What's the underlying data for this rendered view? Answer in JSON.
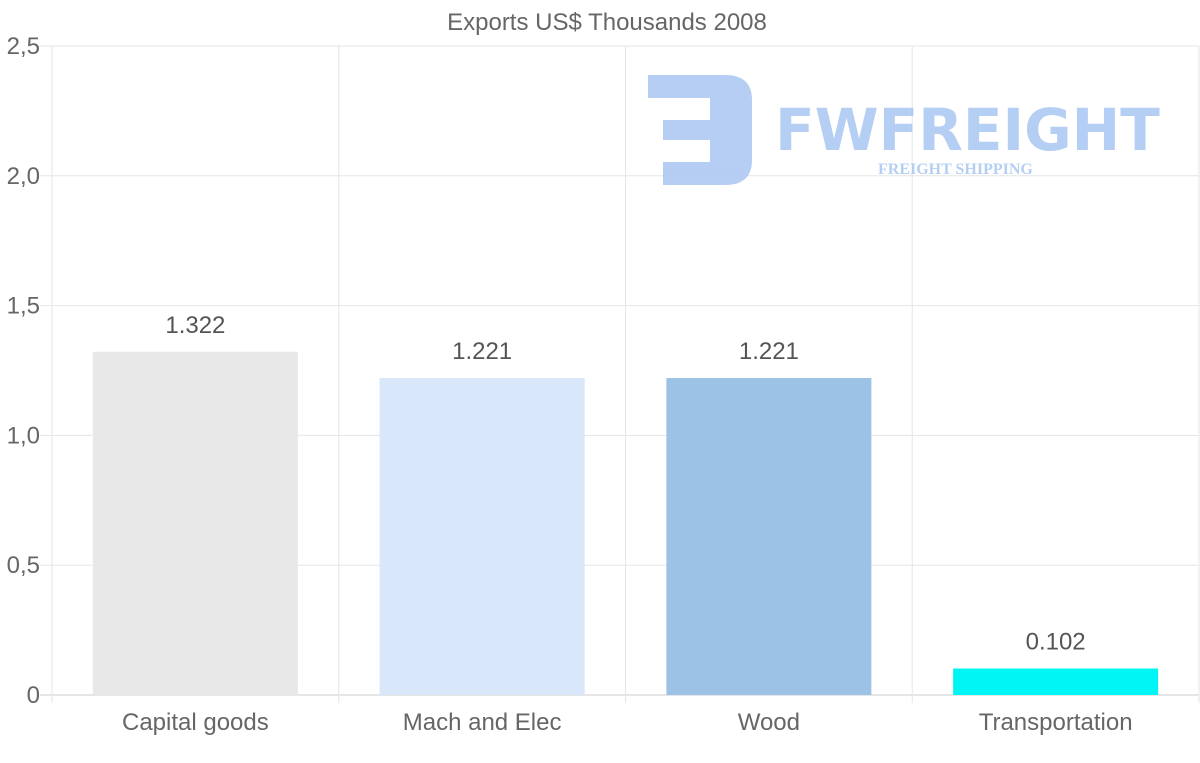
{
  "chart_data": {
    "type": "bar",
    "title": "Exports US$ Thousands 2008",
    "categories": [
      "Capital goods",
      "Mach and Elec",
      "Wood",
      "Transportation"
    ],
    "values": [
      1.322,
      1.221,
      1.221,
      0.102
    ],
    "value_labels": [
      "1.322",
      "1.221",
      "1.221",
      "0.102"
    ],
    "colors": [
      "#e8e8e8",
      "#d8e7fa",
      "#9cc3e6",
      "#00f5f5"
    ],
    "ylim": [
      0,
      2.5
    ],
    "yticks": [
      0,
      0.5,
      1.0,
      1.5,
      2.0,
      2.5
    ],
    "ytick_labels": [
      "0",
      "0,5",
      "1,0",
      "1,5",
      "2,0",
      "2,5"
    ],
    "xlabel": "",
    "ylabel": "",
    "grid": true,
    "legend": "none"
  },
  "watermark": {
    "brand": "FWFREIGHT",
    "tagline": "FREIGHT SHIPPING",
    "color": "#a9c6f2"
  }
}
